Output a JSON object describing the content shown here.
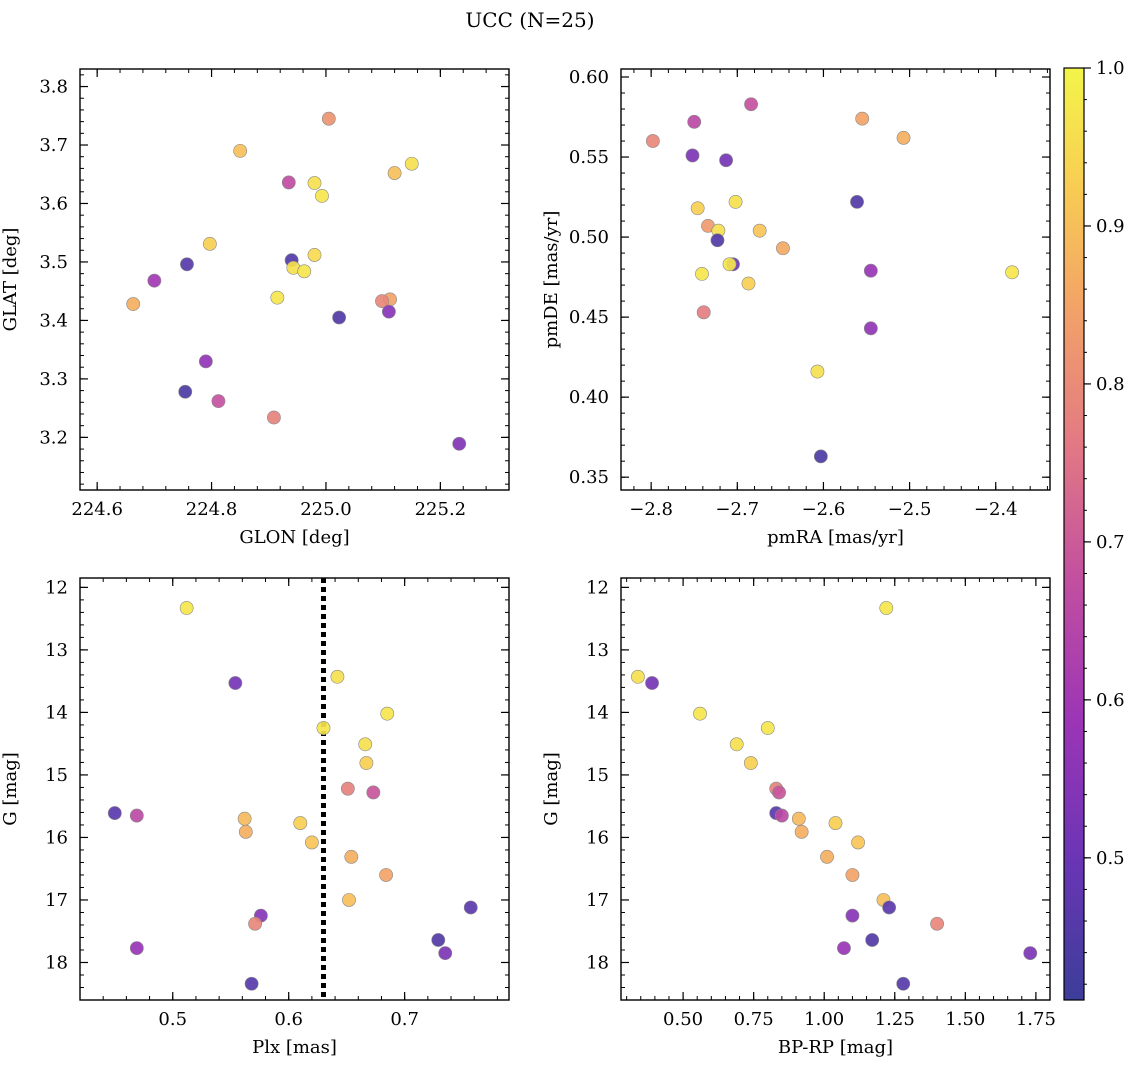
{
  "figure": {
    "title": "UCC (N=25)"
  },
  "colorbar": {
    "ticks": [
      0.5,
      0.6,
      0.7,
      0.8,
      0.9,
      1.0
    ],
    "tick_labels": [
      "0.5",
      "0.6",
      "0.7",
      "0.8",
      "0.9",
      "1.0"
    ],
    "range": [
      0.41,
      1.0
    ]
  },
  "chart_data": [
    {
      "type": "scatter",
      "id": "glon-glat",
      "xlabel": "GLON [deg]",
      "ylabel": "GLAT [deg]",
      "xlim": [
        224.57,
        225.32
      ],
      "ylim": [
        3.11,
        3.83
      ],
      "xticks": [
        224.6,
        224.8,
        225.0,
        225.2
      ],
      "xticklabels": [
        "224.6",
        "224.8",
        "225.0",
        "225.2"
      ],
      "yticks": [
        3.2,
        3.3,
        3.4,
        3.5,
        3.6,
        3.7,
        3.8
      ],
      "yticklabels": [
        "3.2",
        "3.3",
        "3.4",
        "3.5",
        "3.6",
        "3.7",
        "3.8"
      ],
      "invert_y": false,
      "points": [
        {
          "x": 225.005,
          "y": 3.745,
          "c": 0.82
        },
        {
          "x": 224.85,
          "y": 3.69,
          "c": 0.9
        },
        {
          "x": 225.15,
          "y": 3.668,
          "c": 0.96
        },
        {
          "x": 225.12,
          "y": 3.652,
          "c": 0.9
        },
        {
          "x": 224.935,
          "y": 3.636,
          "c": 0.67
        },
        {
          "x": 224.98,
          "y": 3.635,
          "c": 0.96
        },
        {
          "x": 224.993,
          "y": 3.613,
          "c": 0.97
        },
        {
          "x": 224.797,
          "y": 3.531,
          "c": 0.93
        },
        {
          "x": 224.98,
          "y": 3.512,
          "c": 0.95
        },
        {
          "x": 224.94,
          "y": 3.503,
          "c": 0.45
        },
        {
          "x": 224.757,
          "y": 3.496,
          "c": 0.46
        },
        {
          "x": 224.943,
          "y": 3.49,
          "c": 0.96
        },
        {
          "x": 224.962,
          "y": 3.484,
          "c": 0.97
        },
        {
          "x": 224.7,
          "y": 3.468,
          "c": 0.6
        },
        {
          "x": 224.915,
          "y": 3.439,
          "c": 0.97
        },
        {
          "x": 225.112,
          "y": 3.436,
          "c": 0.85
        },
        {
          "x": 225.098,
          "y": 3.433,
          "c": 0.79
        },
        {
          "x": 224.663,
          "y": 3.428,
          "c": 0.87
        },
        {
          "x": 225.11,
          "y": 3.415,
          "c": 0.55
        },
        {
          "x": 225.023,
          "y": 3.405,
          "c": 0.45
        },
        {
          "x": 224.79,
          "y": 3.33,
          "c": 0.57
        },
        {
          "x": 224.754,
          "y": 3.278,
          "c": 0.44
        },
        {
          "x": 224.812,
          "y": 3.262,
          "c": 0.68
        },
        {
          "x": 224.909,
          "y": 3.234,
          "c": 0.78
        },
        {
          "x": 225.233,
          "y": 3.189,
          "c": 0.54
        }
      ]
    },
    {
      "type": "scatter",
      "id": "pm",
      "xlabel": "pmRA [mas/yr]",
      "ylabel": "pmDE [mas/yr]",
      "xlim": [
        -2.835,
        -2.337
      ],
      "ylim": [
        0.342,
        0.605
      ],
      "xticks": [
        -2.8,
        -2.7,
        -2.6,
        -2.5,
        -2.4
      ],
      "xticklabels": [
        "−2.8",
        "−2.7",
        "−2.6",
        "−2.5",
        "−2.4"
      ],
      "yticks": [
        0.35,
        0.4,
        0.45,
        0.5,
        0.55,
        0.6
      ],
      "yticklabels": [
        "0.35",
        "0.40",
        "0.45",
        "0.50",
        "0.55",
        "0.60"
      ],
      "invert_y": false,
      "points": [
        {
          "x": -2.684,
          "y": 0.583,
          "c": 0.68
        },
        {
          "x": -2.555,
          "y": 0.574,
          "c": 0.85
        },
        {
          "x": -2.75,
          "y": 0.572,
          "c": 0.66
        },
        {
          "x": -2.507,
          "y": 0.562,
          "c": 0.87
        },
        {
          "x": -2.798,
          "y": 0.56,
          "c": 0.79
        },
        {
          "x": -2.752,
          "y": 0.551,
          "c": 0.53
        },
        {
          "x": -2.713,
          "y": 0.548,
          "c": 0.52
        },
        {
          "x": -2.561,
          "y": 0.522,
          "c": 0.45
        },
        {
          "x": -2.702,
          "y": 0.522,
          "c": 0.96
        },
        {
          "x": -2.746,
          "y": 0.518,
          "c": 0.93
        },
        {
          "x": -2.734,
          "y": 0.507,
          "c": 0.83
        },
        {
          "x": -2.722,
          "y": 0.504,
          "c": 0.96
        },
        {
          "x": -2.674,
          "y": 0.504,
          "c": 0.91
        },
        {
          "x": -2.723,
          "y": 0.498,
          "c": 0.45
        },
        {
          "x": -2.647,
          "y": 0.493,
          "c": 0.86
        },
        {
          "x": -2.705,
          "y": 0.483,
          "c": 0.5
        },
        {
          "x": -2.709,
          "y": 0.483,
          "c": 0.97
        },
        {
          "x": -2.545,
          "y": 0.479,
          "c": 0.58
        },
        {
          "x": -2.381,
          "y": 0.478,
          "c": 0.97
        },
        {
          "x": -2.741,
          "y": 0.477,
          "c": 0.97
        },
        {
          "x": -2.687,
          "y": 0.471,
          "c": 0.93
        },
        {
          "x": -2.739,
          "y": 0.453,
          "c": 0.77
        },
        {
          "x": -2.545,
          "y": 0.443,
          "c": 0.57
        },
        {
          "x": -2.607,
          "y": 0.416,
          "c": 0.96
        },
        {
          "x": -2.603,
          "y": 0.363,
          "c": 0.44
        }
      ]
    },
    {
      "type": "scatter",
      "id": "plx-g",
      "xlabel": "Plx [mas]",
      "ylabel": "G [mag]",
      "xlim": [
        0.42,
        0.79
      ],
      "ylim": [
        11.85,
        18.6
      ],
      "xticks": [
        0.5,
        0.6,
        0.7
      ],
      "xticklabels": [
        "0.5",
        "0.6",
        "0.7"
      ],
      "yticks": [
        12,
        13,
        14,
        15,
        16,
        17,
        18
      ],
      "yticklabels": [
        "12",
        "13",
        "14",
        "15",
        "16",
        "17",
        "18"
      ],
      "invert_y": true,
      "vline": 0.63,
      "points": [
        {
          "x": 0.512,
          "y": 12.33,
          "c": 0.97
        },
        {
          "x": 0.554,
          "y": 13.53,
          "c": 0.52
        },
        {
          "x": 0.642,
          "y": 13.43,
          "c": 0.96
        },
        {
          "x": 0.685,
          "y": 14.02,
          "c": 0.97
        },
        {
          "x": 0.63,
          "y": 14.25,
          "c": 0.97
        },
        {
          "x": 0.666,
          "y": 14.51,
          "c": 0.96
        },
        {
          "x": 0.667,
          "y": 14.81,
          "c": 0.93
        },
        {
          "x": 0.651,
          "y": 15.22,
          "c": 0.78
        },
        {
          "x": 0.673,
          "y": 15.28,
          "c": 0.69
        },
        {
          "x": 0.45,
          "y": 15.61,
          "c": 0.47
        },
        {
          "x": 0.469,
          "y": 15.65,
          "c": 0.66
        },
        {
          "x": 0.562,
          "y": 15.7,
          "c": 0.89
        },
        {
          "x": 0.61,
          "y": 15.77,
          "c": 0.93
        },
        {
          "x": 0.563,
          "y": 15.91,
          "c": 0.87
        },
        {
          "x": 0.62,
          "y": 16.08,
          "c": 0.91
        },
        {
          "x": 0.654,
          "y": 16.31,
          "c": 0.87
        },
        {
          "x": 0.684,
          "y": 16.6,
          "c": 0.85
        },
        {
          "x": 0.652,
          "y": 17.0,
          "c": 0.9
        },
        {
          "x": 0.757,
          "y": 17.12,
          "c": 0.47
        },
        {
          "x": 0.576,
          "y": 17.25,
          "c": 0.55
        },
        {
          "x": 0.571,
          "y": 17.38,
          "c": 0.79
        },
        {
          "x": 0.729,
          "y": 17.64,
          "c": 0.45
        },
        {
          "x": 0.469,
          "y": 17.77,
          "c": 0.58
        },
        {
          "x": 0.735,
          "y": 17.85,
          "c": 0.53
        },
        {
          "x": 0.568,
          "y": 18.34,
          "c": 0.46
        }
      ]
    },
    {
      "type": "scatter",
      "id": "cmd",
      "xlabel": "BP-RP [mag]",
      "ylabel": "G [mag]",
      "xlim": [
        0.28,
        1.8
      ],
      "ylim": [
        11.85,
        18.6
      ],
      "xticks": [
        0.5,
        0.75,
        1.0,
        1.25,
        1.5,
        1.75
      ],
      "xticklabels": [
        "0.50",
        "0.75",
        "1.00",
        "1.25",
        "1.50",
        "1.75"
      ],
      "yticks": [
        12,
        13,
        14,
        15,
        16,
        17,
        18
      ],
      "yticklabels": [
        "12",
        "13",
        "14",
        "15",
        "16",
        "17",
        "18"
      ],
      "invert_y": true,
      "points": [
        {
          "x": 1.22,
          "y": 12.33,
          "c": 0.97
        },
        {
          "x": 0.39,
          "y": 13.53,
          "c": 0.52
        },
        {
          "x": 0.34,
          "y": 13.43,
          "c": 0.96
        },
        {
          "x": 0.56,
          "y": 14.02,
          "c": 0.97
        },
        {
          "x": 0.8,
          "y": 14.25,
          "c": 0.97
        },
        {
          "x": 0.69,
          "y": 14.51,
          "c": 0.96
        },
        {
          "x": 0.74,
          "y": 14.81,
          "c": 0.93
        },
        {
          "x": 0.83,
          "y": 15.22,
          "c": 0.78
        },
        {
          "x": 0.84,
          "y": 15.28,
          "c": 0.69
        },
        {
          "x": 0.83,
          "y": 15.61,
          "c": 0.47
        },
        {
          "x": 0.85,
          "y": 15.65,
          "c": 0.66
        },
        {
          "x": 0.91,
          "y": 15.7,
          "c": 0.89
        },
        {
          "x": 1.04,
          "y": 15.77,
          "c": 0.93
        },
        {
          "x": 0.92,
          "y": 15.91,
          "c": 0.87
        },
        {
          "x": 1.12,
          "y": 16.08,
          "c": 0.91
        },
        {
          "x": 1.01,
          "y": 16.31,
          "c": 0.87
        },
        {
          "x": 1.1,
          "y": 16.6,
          "c": 0.85
        },
        {
          "x": 1.21,
          "y": 17.0,
          "c": 0.9
        },
        {
          "x": 1.23,
          "y": 17.12,
          "c": 0.47
        },
        {
          "x": 1.1,
          "y": 17.25,
          "c": 0.55
        },
        {
          "x": 1.4,
          "y": 17.38,
          "c": 0.79
        },
        {
          "x": 1.17,
          "y": 17.64,
          "c": 0.45
        },
        {
          "x": 1.07,
          "y": 17.77,
          "c": 0.58
        },
        {
          "x": 1.73,
          "y": 17.85,
          "c": 0.53
        },
        {
          "x": 1.28,
          "y": 18.34,
          "c": 0.46
        }
      ]
    }
  ]
}
